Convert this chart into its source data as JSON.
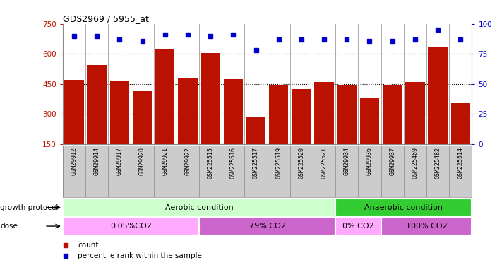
{
  "title": "GDS2969 / 5955_at",
  "samples": [
    "GSM29912",
    "GSM29914",
    "GSM29917",
    "GSM29920",
    "GSM29921",
    "GSM29922",
    "GSM225515",
    "GSM225516",
    "GSM225517",
    "GSM225519",
    "GSM225520",
    "GSM225521",
    "GSM29934",
    "GSM29936",
    "GSM29937",
    "GSM225469",
    "GSM225482",
    "GSM225514"
  ],
  "bar_values": [
    470,
    545,
    465,
    415,
    625,
    478,
    605,
    475,
    285,
    445,
    425,
    460,
    445,
    380,
    445,
    460,
    635,
    355
  ],
  "dot_values": [
    90,
    90,
    87,
    86,
    91,
    91,
    90,
    91,
    78,
    87,
    87,
    87,
    87,
    86,
    86,
    87,
    95,
    87
  ],
  "ylim_left": [
    150,
    750
  ],
  "ylim_right": [
    0,
    100
  ],
  "yticks_left": [
    150,
    300,
    450,
    600,
    750
  ],
  "yticks_right": [
    0,
    25,
    50,
    75,
    100
  ],
  "bar_color": "#bb1100",
  "dot_color": "#0000cc",
  "grid_lines": [
    300,
    450,
    600
  ],
  "growth_protocol_label": "growth protocol",
  "dose_label": "dose",
  "groups": [
    {
      "label": "Aerobic condition",
      "start": 0,
      "end": 11,
      "color": "#ccffcc"
    },
    {
      "label": "Anaerobic condition",
      "start": 12,
      "end": 17,
      "color": "#33cc33"
    }
  ],
  "doses": [
    {
      "label": "0.05%CO2",
      "start": 0,
      "end": 5,
      "color": "#ffaaff"
    },
    {
      "label": "79% CO2",
      "start": 6,
      "end": 11,
      "color": "#cc66cc"
    },
    {
      "label": "0% CO2",
      "start": 12,
      "end": 13,
      "color": "#ffaaff"
    },
    {
      "label": "100% CO2",
      "start": 14,
      "end": 17,
      "color": "#cc66cc"
    }
  ],
  "legend_items": [
    {
      "label": "count",
      "color": "#bb1100"
    },
    {
      "label": "percentile rank within the sample",
      "color": "#0000cc"
    }
  ],
  "xlabel_bg": "#cccccc",
  "border_color": "#888888",
  "fig_width": 7.11,
  "fig_height": 3.75
}
